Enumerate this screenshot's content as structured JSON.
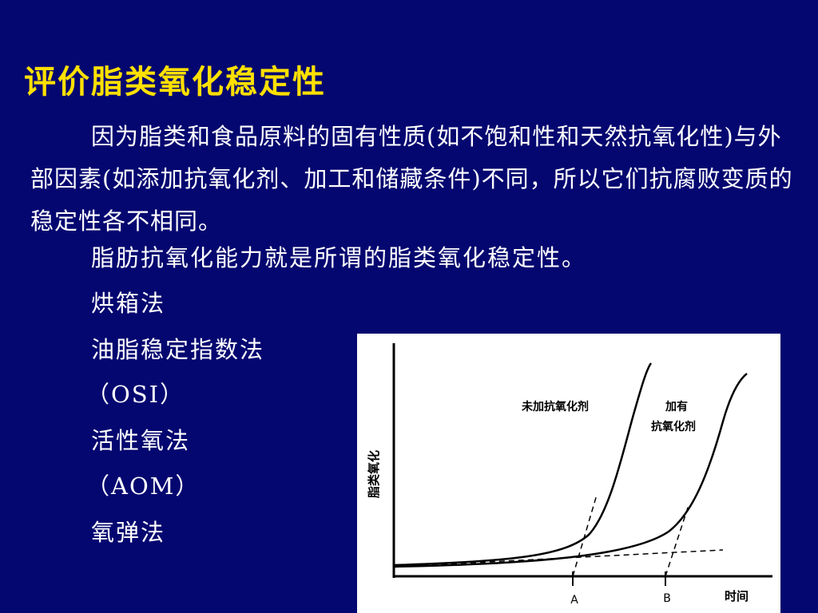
{
  "title": "评价脂类氧化稳定性",
  "paragraph": "因为脂类和食品原料的固有性质(如不饱和性和天然抗氧化性)与外部因素(如添加抗氧化剂、加工和储藏条件)不同，所以它们抗腐败变质的稳定性各不相同。",
  "sentence": "脂肪抗氧化能力就是所谓的脂类氧化稳定性。",
  "methods": [
    "烘箱法",
    "油脂稳定指数法",
    "（OSI）",
    "活性氧法",
    "（AOM）",
    "氧弹法"
  ],
  "figure": {
    "y_axis_label": "脂类氧化",
    "x_axis_label": "时间",
    "curve1_label": "未加抗氧化剂",
    "curve2_label_line1": "加有",
    "curve2_label_line2": "抗氧化剂",
    "tick_a": "A",
    "tick_b": "B"
  }
}
